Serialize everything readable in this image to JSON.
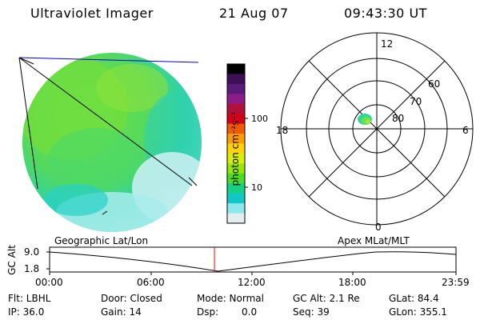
{
  "header": {
    "title": "Ultraviolet Imager",
    "date": "21 Aug 07",
    "time": "09:43:30 UT"
  },
  "colorbar": {
    "unit_label": "photon cm⁻²s⁻¹",
    "tick_labels": [
      "100",
      "10"
    ],
    "colors": [
      "#000000",
      "#3c0f57",
      "#5a1a77",
      "#8c1c86",
      "#b0103a",
      "#d4001a",
      "#f05a00",
      "#ff9d00",
      "#ffd400",
      "#d8ef00",
      "#96e600",
      "#4cdc28",
      "#14d282",
      "#10c8c8",
      "#8ce8ec",
      "#e4eef0"
    ]
  },
  "polar": {
    "mlt_labels": {
      "top": "12",
      "left": "18",
      "right": "6",
      "bottom": "0"
    },
    "lat_labels": [
      "60",
      "70",
      "80"
    ]
  },
  "altitude_plot": {
    "ylabel": "GC Alt",
    "y_ticks": [
      "9.0",
      "1.8"
    ],
    "left_label": "Geographic Lat/Lon",
    "right_label": "Apex MLat/MLT",
    "x_ticks": [
      "00:00",
      "06:00",
      "12:00",
      "18:00",
      "23:59"
    ],
    "marker_color": "#ff0000"
  },
  "info": {
    "row1": [
      "Flt: LBHL",
      "Door: Closed",
      "Mode: Normal",
      "GC Alt: 2.1 Re",
      "GLat: 84.4"
    ],
    "row2": [
      "IP: 36.0",
      "Gain: 14",
      "Dsp:",
      "0.0",
      "Seq: 39",
      "GLon: 355.1"
    ]
  }
}
